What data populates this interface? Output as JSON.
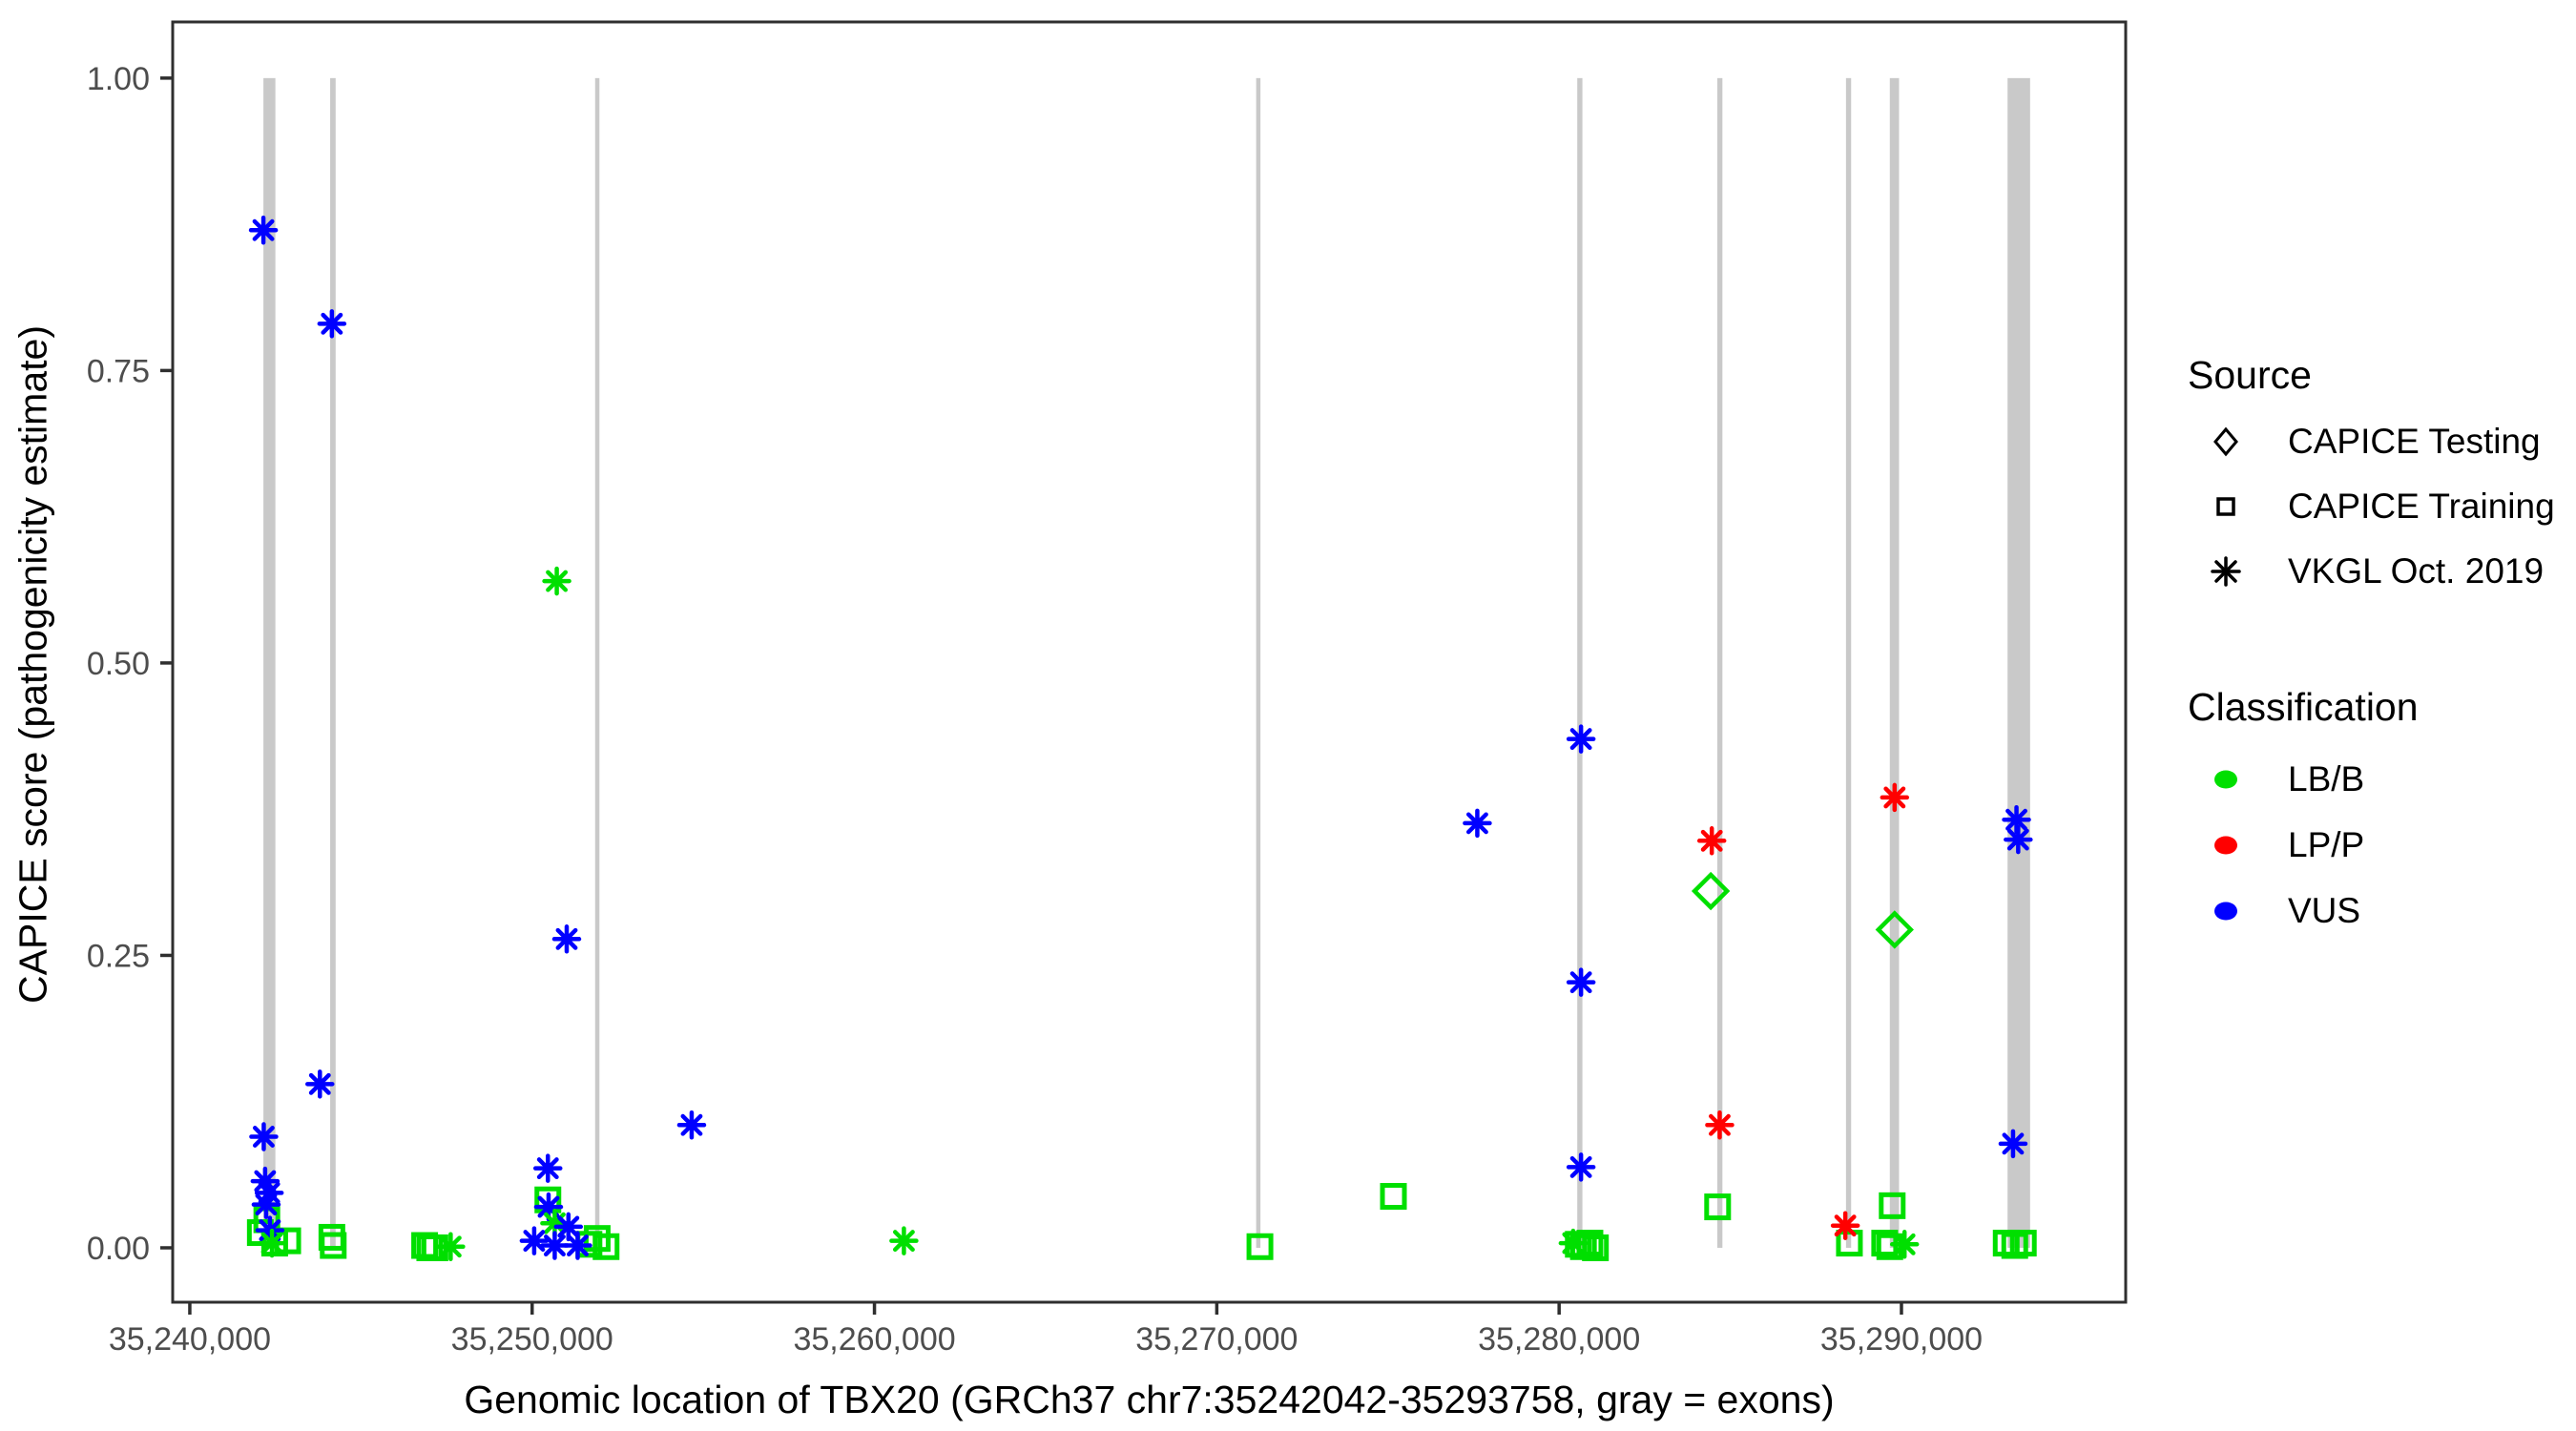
{
  "colors": {
    "lb_b_green": "#00DF00",
    "lp_p_red": "#FF0000",
    "vus_blue": "#0000FF",
    "exon_gray": "#C9C9C9",
    "axis_tick_text": "#4D4D4D",
    "panel_border": "#2F2F2F",
    "legend_symbol_black": "#000000",
    "background": "#FFFFFF"
  },
  "legend": {
    "source": {
      "title": "Source",
      "items": [
        {
          "label": "CAPICE Testing",
          "shape": "diamond"
        },
        {
          "label": "CAPICE Training",
          "shape": "square"
        },
        {
          "label": "VKGL Oct. 2019",
          "shape": "asterisk"
        }
      ]
    },
    "classification": {
      "title": "Classification",
      "items": [
        {
          "label": "LB/B",
          "color": "#00DF00"
        },
        {
          "label": "LP/P",
          "color": "#FF0000"
        },
        {
          "label": "VUS",
          "color": "#0000FF"
        }
      ]
    }
  },
  "chart_data": {
    "type": "scatter",
    "title": "",
    "xlabel": "Genomic location of TBX20 (GRCh37 chr7:35242042-35293758, gray = exons)",
    "ylabel": "CAPICE score (pathogenicity estimate)",
    "xlim": [
      35239500,
      35296550
    ],
    "ylim": [
      -0.0465,
      1.048
    ],
    "grid": false,
    "legend_position": "right",
    "x_ticks": [
      {
        "value": 35240000,
        "label": "35,240,000"
      },
      {
        "value": 35250000,
        "label": "35,250,000"
      },
      {
        "value": 35260000,
        "label": "35,260,000"
      },
      {
        "value": 35270000,
        "label": "35,270,000"
      },
      {
        "value": 35280000,
        "label": "35,280,000"
      },
      {
        "value": 35290000,
        "label": "35,290,000"
      }
    ],
    "y_ticks": [
      {
        "value": 0.0,
        "label": "0.00"
      },
      {
        "value": 0.25,
        "label": "0.25"
      },
      {
        "value": 0.5,
        "label": "0.50"
      },
      {
        "value": 0.75,
        "label": "0.75"
      },
      {
        "value": 1.0,
        "label": "1.00"
      }
    ],
    "exon_regions": [
      [
        35242150,
        35242500
      ],
      [
        35244100,
        35244260
      ],
      [
        35251840,
        35251960
      ],
      [
        35271150,
        35271270
      ],
      [
        35280530,
        35280680
      ],
      [
        35284620,
        35284770
      ],
      [
        35288380,
        35288530
      ],
      [
        35289660,
        35289930
      ],
      [
        35293100,
        35293758
      ]
    ],
    "exon_bar_value_span": [
      0.0,
      1.0
    ],
    "points": [
      {
        "g": 35242150,
        "v": 0.87,
        "source": "vkgl",
        "classification": "VUS"
      },
      {
        "g": 35242160,
        "v": 0.095,
        "source": "vkgl",
        "classification": "VUS"
      },
      {
        "g": 35242200,
        "v": 0.057,
        "source": "vkgl",
        "classification": "VUS"
      },
      {
        "g": 35242320,
        "v": 0.047,
        "source": "vkgl",
        "classification": "VUS"
      },
      {
        "g": 35242230,
        "v": 0.037,
        "source": "vkgl",
        "classification": "VUS"
      },
      {
        "g": 35242250,
        "v": 0.024,
        "source": "training",
        "classification": "LB/B"
      },
      {
        "g": 35242060,
        "v": 0.013,
        "source": "training",
        "classification": "LB/B"
      },
      {
        "g": 35242340,
        "v": 0.015,
        "source": "vkgl",
        "classification": "VUS"
      },
      {
        "g": 35242860,
        "v": 0.006,
        "source": "training",
        "classification": "LB/B"
      },
      {
        "g": 35242400,
        "v": 0.004,
        "source": "vkgl",
        "classification": "LB/B"
      },
      {
        "g": 35242480,
        "v": 0.004,
        "source": "training",
        "classification": "LB/B"
      },
      {
        "g": 35243800,
        "v": 0.14,
        "source": "vkgl",
        "classification": "VUS"
      },
      {
        "g": 35244150,
        "v": 0.79,
        "source": "vkgl",
        "classification": "VUS"
      },
      {
        "g": 35244150,
        "v": 0.009,
        "source": "training",
        "classification": "LB/B"
      },
      {
        "g": 35244190,
        "v": 0.002,
        "source": "training",
        "classification": "LB/B"
      },
      {
        "g": 35246860,
        "v": 0.002,
        "source": "training",
        "classification": "LB/B"
      },
      {
        "g": 35247010,
        "v": 0.0,
        "source": "training",
        "classification": "LB/B"
      },
      {
        "g": 35247160,
        "v": 0.0,
        "source": "training",
        "classification": "LB/B"
      },
      {
        "g": 35247620,
        "v": 0.001,
        "source": "vkgl",
        "classification": "LB/B"
      },
      {
        "g": 35250720,
        "v": 0.57,
        "source": "vkgl",
        "classification": "LB/B"
      },
      {
        "g": 35251010,
        "v": 0.264,
        "source": "vkgl",
        "classification": "VUS"
      },
      {
        "g": 35250460,
        "v": 0.068,
        "source": "vkgl",
        "classification": "VUS"
      },
      {
        "g": 35250460,
        "v": 0.041,
        "source": "training",
        "classification": "LB/B"
      },
      {
        "g": 35250480,
        "v": 0.035,
        "source": "vkgl",
        "classification": "VUS"
      },
      {
        "g": 35250660,
        "v": 0.021,
        "source": "vkgl",
        "classification": "LB/B"
      },
      {
        "g": 35251060,
        "v": 0.018,
        "source": "vkgl",
        "classification": "VUS"
      },
      {
        "g": 35250060,
        "v": 0.006,
        "source": "vkgl",
        "classification": "VUS"
      },
      {
        "g": 35250660,
        "v": 0.002,
        "source": "vkgl",
        "classification": "VUS"
      },
      {
        "g": 35251330,
        "v": 0.002,
        "source": "vkgl",
        "classification": "VUS"
      },
      {
        "g": 35251660,
        "v": 0.003,
        "source": "training",
        "classification": "LB/B"
      },
      {
        "g": 35251900,
        "v": 0.008,
        "source": "training",
        "classification": "LB/B"
      },
      {
        "g": 35252160,
        "v": 0.001,
        "source": "training",
        "classification": "LB/B"
      },
      {
        "g": 35254660,
        "v": 0.105,
        "source": "vkgl",
        "classification": "VUS"
      },
      {
        "g": 35260860,
        "v": 0.006,
        "source": "vkgl",
        "classification": "LB/B"
      },
      {
        "g": 35271260,
        "v": 0.001,
        "source": "training",
        "classification": "LB/B"
      },
      {
        "g": 35275160,
        "v": 0.044,
        "source": "training",
        "classification": "LB/B"
      },
      {
        "g": 35277610,
        "v": 0.363,
        "source": "vkgl",
        "classification": "VUS"
      },
      {
        "g": 35280640,
        "v": 0.435,
        "source": "vkgl",
        "classification": "VUS"
      },
      {
        "g": 35280640,
        "v": 0.227,
        "source": "vkgl",
        "classification": "VUS"
      },
      {
        "g": 35280640,
        "v": 0.069,
        "source": "vkgl",
        "classification": "VUS"
      },
      {
        "g": 35280410,
        "v": 0.004,
        "source": "vkgl",
        "classification": "LB/B"
      },
      {
        "g": 35280560,
        "v": 0.003,
        "source": "training",
        "classification": "LB/B"
      },
      {
        "g": 35280710,
        "v": 0.001,
        "source": "training",
        "classification": "LB/B"
      },
      {
        "g": 35280900,
        "v": 0.004,
        "source": "training",
        "classification": "LB/B"
      },
      {
        "g": 35281060,
        "v": 0.0,
        "source": "training",
        "classification": "LB/B"
      },
      {
        "g": 35284460,
        "v": 0.348,
        "source": "vkgl",
        "classification": "LP/P"
      },
      {
        "g": 35284430,
        "v": 0.305,
        "source": "testing",
        "classification": "LB/B"
      },
      {
        "g": 35284690,
        "v": 0.105,
        "source": "vkgl",
        "classification": "LP/P"
      },
      {
        "g": 35284630,
        "v": 0.035,
        "source": "training",
        "classification": "LB/B"
      },
      {
        "g": 35288360,
        "v": 0.019,
        "source": "vkgl",
        "classification": "LP/P"
      },
      {
        "g": 35288480,
        "v": 0.004,
        "source": "training",
        "classification": "LB/B"
      },
      {
        "g": 35289800,
        "v": 0.385,
        "source": "vkgl",
        "classification": "LP/P"
      },
      {
        "g": 35289800,
        "v": 0.272,
        "source": "testing",
        "classification": "LB/B"
      },
      {
        "g": 35289730,
        "v": 0.036,
        "source": "training",
        "classification": "LB/B"
      },
      {
        "g": 35289510,
        "v": 0.004,
        "source": "training",
        "classification": "LB/B"
      },
      {
        "g": 35289660,
        "v": 0.001,
        "source": "training",
        "classification": "LB/B"
      },
      {
        "g": 35290090,
        "v": 0.003,
        "source": "vkgl",
        "classification": "LB/B"
      },
      {
        "g": 35293260,
        "v": 0.089,
        "source": "vkgl",
        "classification": "VUS"
      },
      {
        "g": 35293360,
        "v": 0.366,
        "source": "vkgl",
        "classification": "VUS"
      },
      {
        "g": 35293410,
        "v": 0.349,
        "source": "vkgl",
        "classification": "VUS"
      },
      {
        "g": 35293060,
        "v": 0.004,
        "source": "training",
        "classification": "LB/B"
      },
      {
        "g": 35293310,
        "v": 0.002,
        "source": "training",
        "classification": "LB/B"
      },
      {
        "g": 35293560,
        "v": 0.004,
        "source": "training",
        "classification": "LB/B"
      }
    ]
  }
}
